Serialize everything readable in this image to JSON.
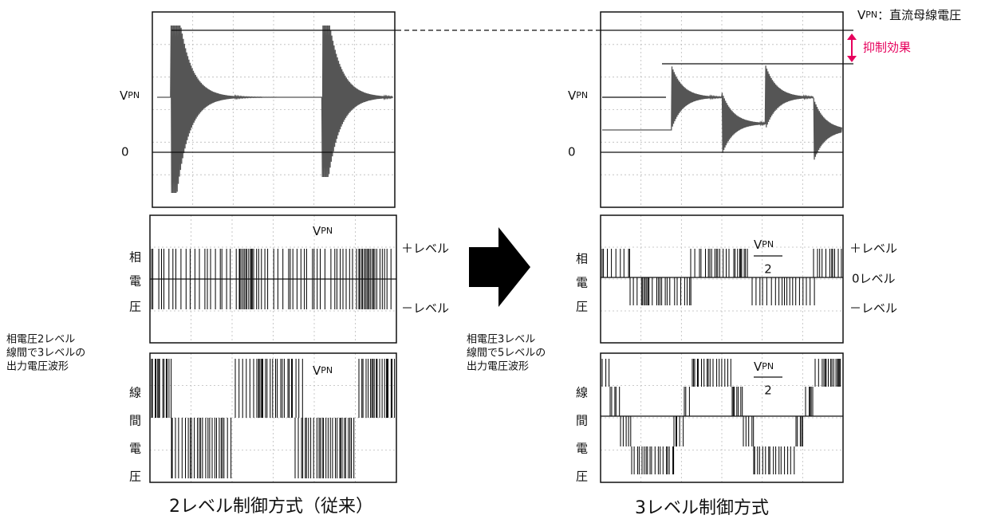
{
  "legend": {
    "v": "V",
    "sub": "PN",
    "text": "：直流母線電圧",
    "suppression": "抑制効果"
  },
  "left": {
    "title": "2レベル制御方式（従来）",
    "note": [
      "相電圧2レベル",
      "線間で3レベルの",
      "出力電圧波形"
    ],
    "top": {
      "v": "V",
      "sub": "PN",
      "zero": "0"
    },
    "phase": {
      "label": [
        "相",
        "電",
        "圧"
      ],
      "v": "V",
      "sub": "PN",
      "plus": "＋レベル",
      "minus": "－レベル"
    },
    "line": {
      "label": [
        "線",
        "間",
        "電",
        "圧"
      ],
      "v": "V",
      "sub": "PN"
    }
  },
  "right": {
    "title": "3レベル制御方式",
    "note": [
      "相電圧3レベル",
      "線間で5レベルの",
      "出力電圧波形"
    ],
    "top": {
      "v": "V",
      "sub": "PN",
      "zero": "0"
    },
    "phase": {
      "label": [
        "相",
        "電",
        "圧"
      ],
      "v": "V",
      "sub": "PN",
      "den": "2",
      "plus": "＋レベル",
      "zero": "0レベル",
      "minus": "－レベル"
    },
    "line": {
      "label": [
        "線",
        "間",
        "電",
        "圧"
      ],
      "v": "V",
      "sub": "PN",
      "den": "2"
    }
  }
}
